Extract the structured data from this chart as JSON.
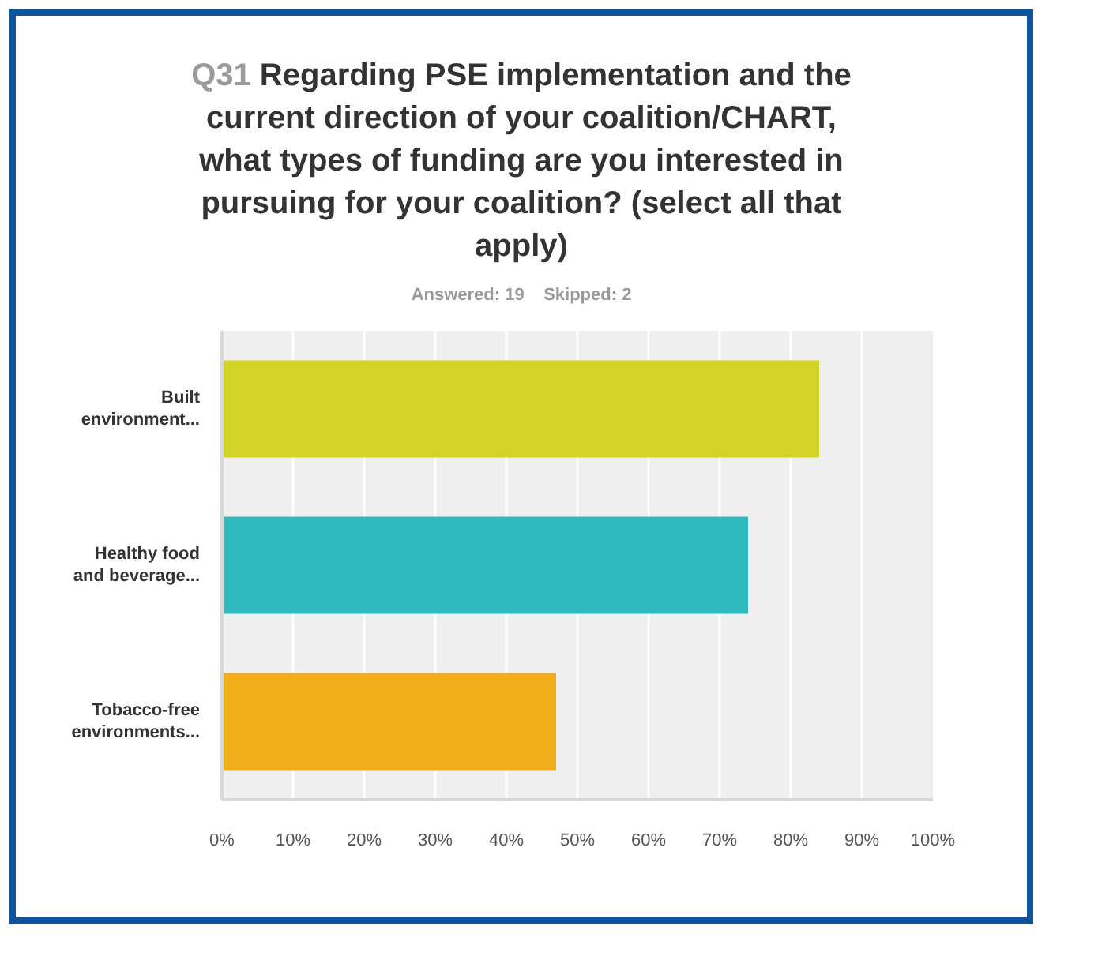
{
  "chart_data": {
    "type": "bar",
    "orientation": "horizontal",
    "title": "Q31 Regarding PSE implementation and the current direction of your coalition/CHART, what types of funding are you interested in pursuing for your coalition? (select all that apply)",
    "subtitle": "Answered: 19    Skipped: 2",
    "categories": [
      "Built\nenvironment...",
      "Healthy food\nand beverage...",
      "Tobacco-free\nenvironments..."
    ],
    "values": [
      84,
      74,
      47
    ],
    "colors": [
      "#d1d427",
      "#31babd",
      "#f2ae1a"
    ],
    "xlim": [
      0,
      100
    ],
    "xticks": [
      {
        "value": 0,
        "label": "0%"
      },
      {
        "value": 10,
        "label": "10%"
      },
      {
        "value": 20,
        "label": "20%"
      },
      {
        "value": 30,
        "label": "30%"
      },
      {
        "value": 40,
        "label": "40%"
      },
      {
        "value": 50,
        "label": "50%"
      },
      {
        "value": 60,
        "label": "60%"
      },
      {
        "value": 70,
        "label": "70%"
      },
      {
        "value": 80,
        "label": "80%"
      },
      {
        "value": 90,
        "label": "90%"
      },
      {
        "value": 100,
        "label": "100%"
      }
    ],
    "grid": "x"
  }
}
